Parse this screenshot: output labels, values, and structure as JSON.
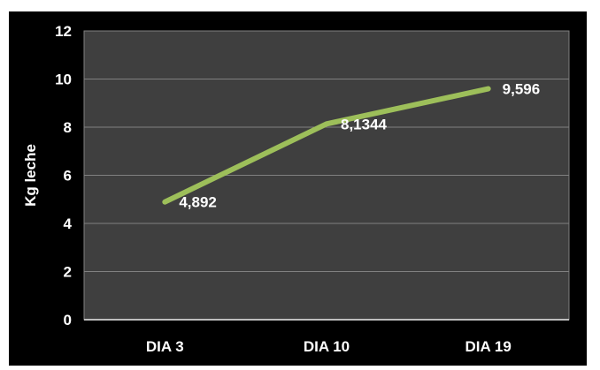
{
  "page": {
    "background_color": "#ffffff"
  },
  "chart": {
    "frame_background": "#000000",
    "plot_background": "#3f3f3f",
    "grid_color": "#808080",
    "axis_line_color": "#bdbdbd",
    "text_color": "#ffffff",
    "line_color": "#9dbf5a"
  },
  "chart_data": {
    "type": "line",
    "title": "",
    "xlabel": "",
    "ylabel": "Kg leche",
    "categories": [
      "DIA 3",
      "DIA 10",
      "DIA 19"
    ],
    "series": [
      {
        "name": "Kg leche",
        "values": [
          4.892,
          8.1344,
          9.596
        ]
      }
    ],
    "data_labels": [
      "4,892",
      "8,1344",
      "9,596"
    ],
    "y_ticks": [
      0,
      2,
      4,
      6,
      8,
      10,
      12
    ],
    "y_tick_labels": [
      "0",
      "2",
      "4",
      "6",
      "8",
      "10",
      "12"
    ],
    "ylim": [
      0,
      12
    ],
    "grid": true,
    "legend_position": "none"
  }
}
